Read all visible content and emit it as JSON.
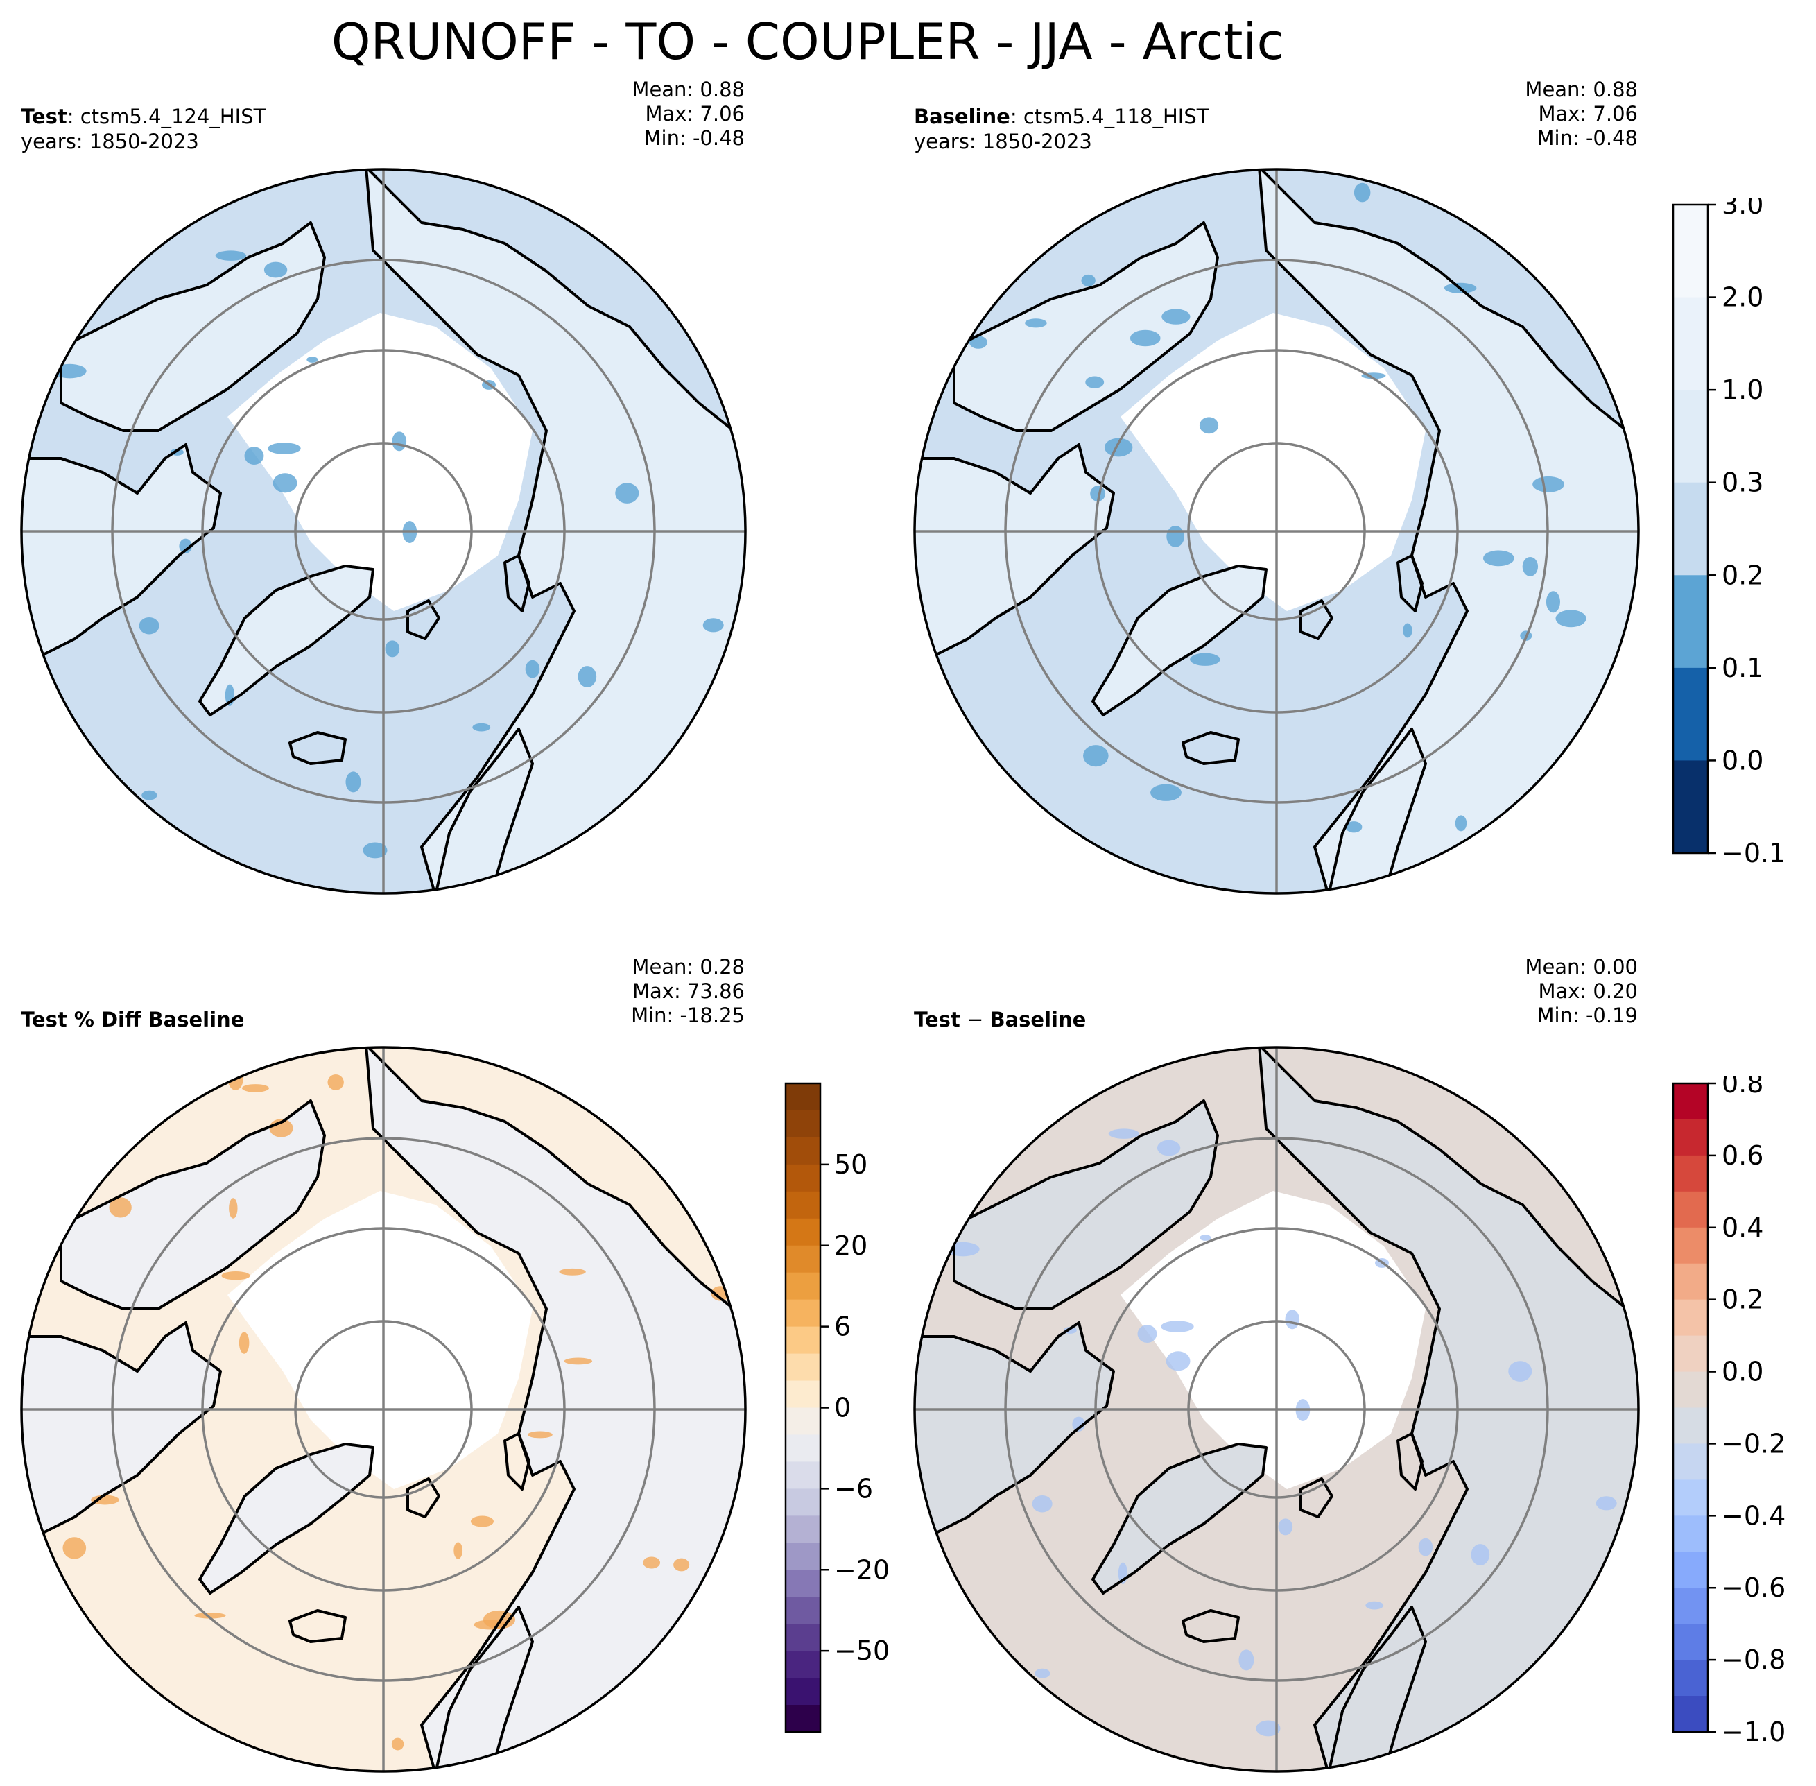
{
  "title": "QRUNOFF - TO - COUPLER - JJA - Arctic",
  "panels": [
    {
      "id": "test",
      "label_bold": "Test",
      "label_sep": ":",
      "label_rest": "ctsm5.4_124_HIST",
      "years": "years: 1850-2023",
      "mean": "Mean:  0.88",
      "max": "Max:  7.06",
      "min": "Min: -0.48",
      "ocean_color": "#cddff1",
      "land_color": "#e3eef8",
      "highlight_color": "#5ca4d4"
    },
    {
      "id": "baseline",
      "label_bold": "Baseline",
      "label_sep": ":",
      "label_rest": "ctsm5.4_118_HIST",
      "years": "years: 1850-2023",
      "mean": "Mean:  0.88",
      "max": "Max:  7.06",
      "min": "Min: -0.48",
      "ocean_color": "#cddff1",
      "land_color": "#e3eef8",
      "highlight_color": "#5ca4d4"
    },
    {
      "id": "pctdiff",
      "label_bold": "Test % Diff Baseline",
      "label_sep": "",
      "label_rest": "",
      "years": "",
      "mean": "Mean:  0.28",
      "max": "Max: 73.86",
      "min": "Min: -18.25",
      "ocean_color": "#fbefe0",
      "land_color": "#eff0f4",
      "highlight_color": "#f3a95a"
    },
    {
      "id": "diff",
      "label_bold": "Test",
      "label_sep": "−",
      "label_rest": "Baseline",
      "label_rest_bold": true,
      "years": "",
      "mean": "Mean:  0.00",
      "max": "Max:  0.20",
      "min": "Min: -0.19",
      "ocean_color": "#e3dad6",
      "land_color": "#d9dde3",
      "highlight_color": "#a9c4f3"
    }
  ],
  "colorbars": [
    {
      "id": "abs",
      "colors": [
        "#f4f8fc",
        "#eaf2fa",
        "#e0ecf7",
        "#c6dbef",
        "#5ca4d4",
        "#1561a9",
        "#08306b"
      ],
      "labels": [
        "3.0",
        "2.0",
        "1.0",
        "0.3",
        "0.2",
        "0.1",
        "0.0",
        "−0.1"
      ]
    },
    {
      "id": "pct",
      "colors": [
        "#7f3b08",
        "#8f4309",
        "#a14d0a",
        "#b3580b",
        "#c2650e",
        "#d47716",
        "#e08a2a",
        "#ec9f40",
        "#f6b35f",
        "#fcca86",
        "#fddcac",
        "#fdebcf",
        "#f4eee7",
        "#eaebf0",
        "#dadcea",
        "#c8cae1",
        "#b4b1d3",
        "#9e98c6",
        "#8678b5",
        "#6f5aa1",
        "#5b3e8f",
        "#4a2580",
        "#3a1270",
        "#2d004b"
      ],
      "labels": [
        "50",
        "20",
        "6",
        "0",
        "−6",
        "−20",
        "−50"
      ]
    },
    {
      "id": "diff",
      "colors": [
        "#b40426",
        "#c7282f",
        "#d6483c",
        "#e26a4f",
        "#ec8c68",
        "#f2ab88",
        "#f4c3a8",
        "#efd1c1",
        "#e3d9d3",
        "#d6dce4",
        "#c6d6f1",
        "#b3cdfb",
        "#9dbdfc",
        "#87aafc",
        "#7293f2",
        "#5e7de6",
        "#4a63d3",
        "#3b4cc0"
      ],
      "labels": [
        "0.8",
        "0.6",
        "0.4",
        "0.2",
        "0.0",
        "−0.2",
        "−0.4",
        "−0.6",
        "−0.8",
        "−1.0"
      ]
    }
  ]
}
